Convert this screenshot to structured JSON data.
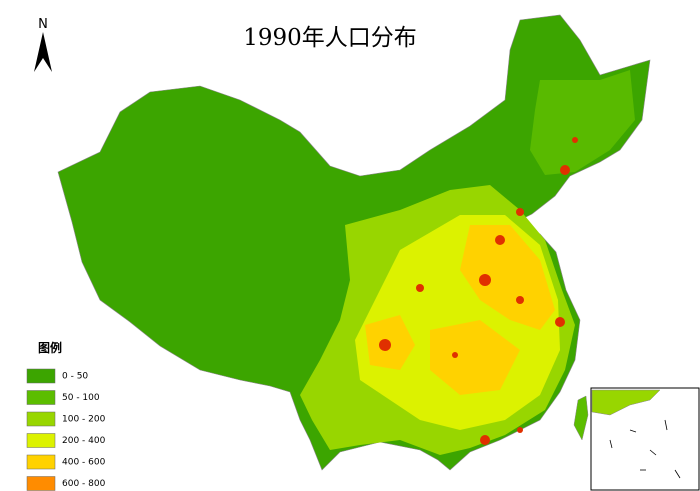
{
  "title": "1990年人口分布",
  "north_arrow": "N",
  "legend": {
    "title": "图例",
    "items": [
      {
        "label": "0 - 50",
        "color": "#3ca500"
      },
      {
        "label": "50 - 100",
        "color": "#5cbd00"
      },
      {
        "label": "100 - 200",
        "color": "#98d600"
      },
      {
        "label": "200 - 400",
        "color": "#dcf200"
      },
      {
        "label": "400 - 600",
        "color": "#ffd200"
      },
      {
        "label": "600 - 800",
        "color": "#ff8c00"
      }
    ]
  }
}
